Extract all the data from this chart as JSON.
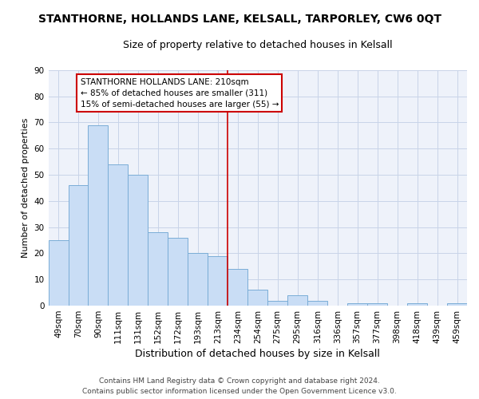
{
  "title": "STANTHORNE, HOLLANDS LANE, KELSALL, TARPORLEY, CW6 0QT",
  "subtitle": "Size of property relative to detached houses in Kelsall",
  "xlabel": "Distribution of detached houses by size in Kelsall",
  "ylabel": "Number of detached properties",
  "categories": [
    "49sqm",
    "70sqm",
    "90sqm",
    "111sqm",
    "131sqm",
    "152sqm",
    "172sqm",
    "193sqm",
    "213sqm",
    "234sqm",
    "254sqm",
    "275sqm",
    "295sqm",
    "316sqm",
    "336sqm",
    "357sqm",
    "377sqm",
    "398sqm",
    "418sqm",
    "439sqm",
    "459sqm"
  ],
  "values": [
    25,
    46,
    69,
    54,
    50,
    28,
    26,
    20,
    19,
    14,
    6,
    2,
    4,
    2,
    0,
    1,
    1,
    0,
    1,
    0,
    1
  ],
  "bar_color": "#c9ddf5",
  "bar_edge_color": "#7aadd6",
  "vline_x": 8.5,
  "vline_color": "#cc0000",
  "annotation_line1": "STANTHORNE HOLLANDS LANE: 210sqm",
  "annotation_line2": "← 85% of detached houses are smaller (311)",
  "annotation_line3": "15% of semi-detached houses are larger (55) →",
  "annotation_box_color": "#cc0000",
  "annotation_box_bg": "#ffffff",
  "ylim": [
    0,
    90
  ],
  "yticks": [
    0,
    10,
    20,
    30,
    40,
    50,
    60,
    70,
    80,
    90
  ],
  "grid_color": "#c8d4e8",
  "background_color": "#eef2fa",
  "footer": "Contains HM Land Registry data © Crown copyright and database right 2024.\nContains public sector information licensed under the Open Government Licence v3.0.",
  "title_fontsize": 10,
  "subtitle_fontsize": 9,
  "xlabel_fontsize": 9,
  "ylabel_fontsize": 8,
  "tick_fontsize": 7.5,
  "annotation_fontsize": 7.5,
  "footer_fontsize": 6.5
}
